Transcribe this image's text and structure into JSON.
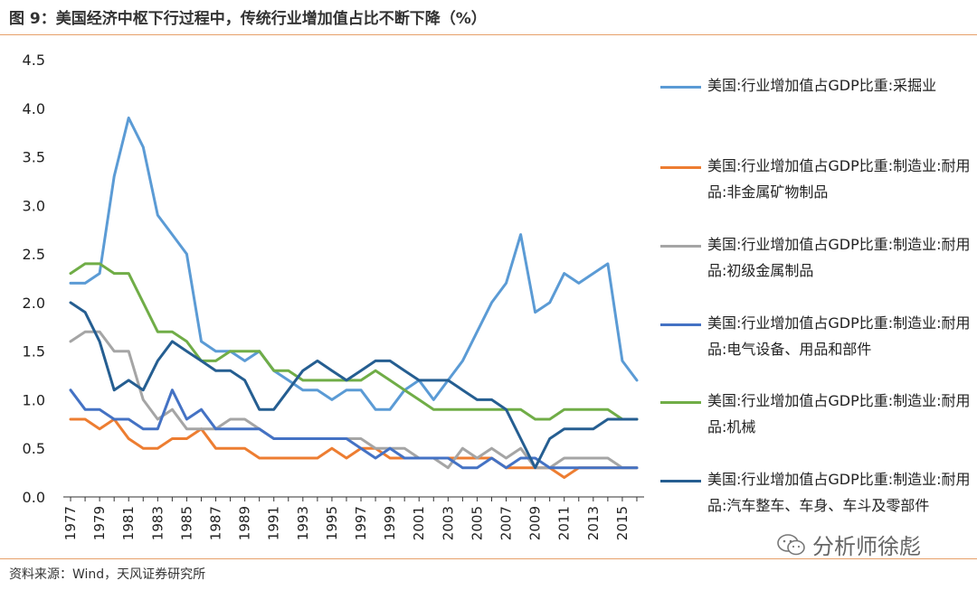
{
  "header": {
    "title": "图 9：美国经济中枢下行过程中，传统行业增加值占比不断下降（%）"
  },
  "footer": {
    "source": "资料来源：Wind，天风证券研究所"
  },
  "watermark": {
    "text": "分析师徐彪",
    "icon": "wechat-icon"
  },
  "colors": {
    "mining": "#5b9bd5",
    "nonmetal": "#ed7d31",
    "primary_metal": "#a5a5a5",
    "electrical": "#4472c4",
    "machinery": "#70ad47",
    "motor": "#255e91",
    "rule": "#e6a06a"
  },
  "chart_data": {
    "type": "line",
    "title": "美国经济中枢下行过程中，传统行业增加值占比不断下降（%）",
    "xlabel": "",
    "ylabel": "",
    "ylim": [
      0,
      4.5
    ],
    "yticks": [
      "0.0",
      "0.5",
      "1.0",
      "1.5",
      "2.0",
      "2.5",
      "3.0",
      "3.5",
      "4.0",
      "4.5"
    ],
    "x": [
      1977,
      1978,
      1979,
      1980,
      1981,
      1982,
      1983,
      1984,
      1985,
      1986,
      1987,
      1988,
      1989,
      1990,
      1991,
      1992,
      1993,
      1994,
      1995,
      1996,
      1997,
      1998,
      1999,
      2000,
      2001,
      2002,
      2003,
      2004,
      2005,
      2006,
      2007,
      2008,
      2009,
      2010,
      2011,
      2012,
      2013,
      2014,
      2015,
      2016
    ],
    "xtick_labels": [
      "1977",
      "1979",
      "1981",
      "1983",
      "1985",
      "1987",
      "1989",
      "1991",
      "1993",
      "1995",
      "1997",
      "1999",
      "2001",
      "2003",
      "2005",
      "2007",
      "2009",
      "2011",
      "2013",
      "2015"
    ],
    "legend_position": "right",
    "series": [
      {
        "name": "美国:行业增加值占GDP比重:采掘业",
        "color_key": "mining",
        "values": [
          2.2,
          2.2,
          2.3,
          3.3,
          3.9,
          3.6,
          2.9,
          2.7,
          2.5,
          1.6,
          1.5,
          1.5,
          1.4,
          1.5,
          1.3,
          1.2,
          1.1,
          1.1,
          1.0,
          1.1,
          1.1,
          0.9,
          0.9,
          1.1,
          1.2,
          1.0,
          1.2,
          1.4,
          1.7,
          2.0,
          2.2,
          2.7,
          1.9,
          2.0,
          2.3,
          2.2,
          2.3,
          2.4,
          1.4,
          1.2
        ]
      },
      {
        "name": "美国:行业增加值占GDP比重:制造业:耐用品:非金属矿物制品",
        "color_key": "nonmetal",
        "values": [
          0.8,
          0.8,
          0.7,
          0.8,
          0.6,
          0.5,
          0.5,
          0.6,
          0.6,
          0.7,
          0.5,
          0.5,
          0.5,
          0.4,
          0.4,
          0.4,
          0.4,
          0.4,
          0.5,
          0.4,
          0.5,
          0.5,
          0.4,
          0.4,
          0.4,
          0.4,
          0.4,
          0.4,
          0.4,
          0.4,
          0.3,
          0.3,
          0.3,
          0.3,
          0.2,
          0.3,
          0.3,
          0.3,
          0.3,
          0.3
        ]
      },
      {
        "name": "美国:行业增加值占GDP比重:制造业:耐用品:初级金属制品",
        "color_key": "primary_metal",
        "values": [
          1.6,
          1.7,
          1.7,
          1.5,
          1.5,
          1.0,
          0.8,
          0.9,
          0.7,
          0.7,
          0.7,
          0.8,
          0.8,
          0.7,
          0.6,
          0.6,
          0.6,
          0.6,
          0.6,
          0.6,
          0.6,
          0.5,
          0.5,
          0.5,
          0.4,
          0.4,
          0.3,
          0.5,
          0.4,
          0.5,
          0.4,
          0.5,
          0.3,
          0.3,
          0.4,
          0.4,
          0.4,
          0.4,
          0.3,
          0.3
        ]
      },
      {
        "name": "美国:行业增加值占GDP比重:制造业:耐用品:电气设备、用品和部件",
        "color_key": "electrical",
        "values": [
          1.1,
          0.9,
          0.9,
          0.8,
          0.8,
          0.7,
          0.7,
          1.1,
          0.8,
          0.9,
          0.7,
          0.7,
          0.7,
          0.7,
          0.6,
          0.6,
          0.6,
          0.6,
          0.6,
          0.6,
          0.5,
          0.4,
          0.5,
          0.4,
          0.4,
          0.4,
          0.4,
          0.3,
          0.3,
          0.4,
          0.3,
          0.4,
          0.4,
          0.3,
          0.3,
          0.3,
          0.3,
          0.3,
          0.3,
          0.3
        ]
      },
      {
        "name": "美国:行业增加值占GDP比重:制造业:耐用品:机械",
        "color_key": "machinery",
        "values": [
          2.3,
          2.4,
          2.4,
          2.3,
          2.3,
          2.0,
          1.7,
          1.7,
          1.6,
          1.4,
          1.4,
          1.5,
          1.5,
          1.5,
          1.3,
          1.3,
          1.2,
          1.2,
          1.2,
          1.2,
          1.2,
          1.3,
          1.2,
          1.1,
          1.0,
          0.9,
          0.9,
          0.9,
          0.9,
          0.9,
          0.9,
          0.9,
          0.8,
          0.8,
          0.9,
          0.9,
          0.9,
          0.9,
          0.8,
          0.8
        ]
      },
      {
        "name": "美国:行业增加值占GDP比重:制造业:耐用品:汽车整车、车身、车斗及零部件",
        "color_key": "motor",
        "values": [
          2.0,
          1.9,
          1.6,
          1.1,
          1.2,
          1.1,
          1.4,
          1.6,
          1.5,
          1.4,
          1.3,
          1.3,
          1.2,
          0.9,
          0.9,
          1.1,
          1.3,
          1.4,
          1.3,
          1.2,
          1.3,
          1.4,
          1.4,
          1.3,
          1.2,
          1.2,
          1.2,
          1.1,
          1.0,
          1.0,
          0.9,
          0.6,
          0.3,
          0.6,
          0.7,
          0.7,
          0.7,
          0.8,
          0.8,
          0.8
        ]
      }
    ]
  },
  "legend": {
    "items": [
      {
        "label": "美国:行业增加值占GDP比重:采掘业"
      },
      {
        "label": "美国:行业增加值占GDP比重:制造业:耐用品:非金属矿物制品"
      },
      {
        "label": "美国:行业增加值占GDP比重:制造业:耐用品:初级金属制品"
      },
      {
        "label": "美国:行业增加值占GDP比重:制造业:耐用品:电气设备、用品和部件"
      },
      {
        "label": "美国:行业增加值占GDP比重:制造业:耐用品:机械"
      },
      {
        "label": "美国:行业增加值占GDP比重:制造业:耐用品:汽车整车、车身、车斗及零部件"
      }
    ]
  }
}
